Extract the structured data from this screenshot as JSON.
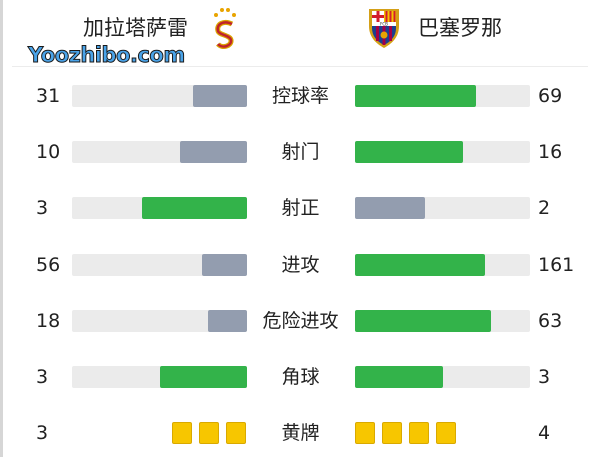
{
  "header": {
    "home_team": "加拉塔萨雷",
    "away_team": "巴塞罗那",
    "home_logo": "galatasaray-crest",
    "away_logo": "fc-barcelona-crest",
    "away_logo_text": "FCB"
  },
  "colors": {
    "leading": "#33b34a",
    "trailing": "#939daf",
    "track": "#ebebeb",
    "card": "#f7c600"
  },
  "stats": [
    {
      "label": "控球率",
      "home": 31,
      "away": 69
    },
    {
      "label": "射门",
      "home": 10,
      "away": 16
    },
    {
      "label": "射正",
      "home": 3,
      "away": 2
    },
    {
      "label": "进攻",
      "home": 56,
      "away": 161
    },
    {
      "label": "危险进攻",
      "home": 18,
      "away": 63
    },
    {
      "label": "角球",
      "home": 3,
      "away": 3
    }
  ],
  "yellow_cards": {
    "label": "黄牌",
    "home": 3,
    "away": 4
  },
  "watermark": "Yoozhibo.com"
}
